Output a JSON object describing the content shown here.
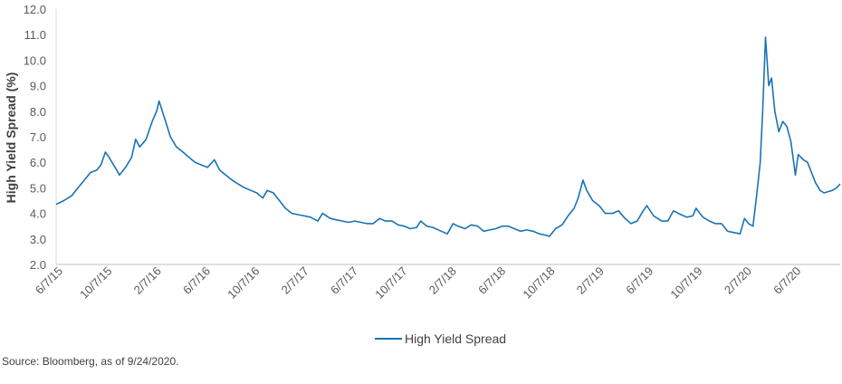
{
  "chart_data": {
    "type": "line",
    "ylabel": "High Yield Spread (%)",
    "xlabel": "",
    "ylim": [
      2.0,
      12.0
    ],
    "yticks": [
      "2.0",
      "3.0",
      "4.0",
      "5.0",
      "6.0",
      "7.0",
      "8.0",
      "9.0",
      "10.0",
      "11.0",
      "12.0"
    ],
    "xticks": [
      "6/7/15",
      "10/7/15",
      "2/7/16",
      "6/7/16",
      "10/7/16",
      "2/7/17",
      "6/7/17",
      "10/7/17",
      "2/7/18",
      "6/7/18",
      "10/7/18",
      "2/7/19",
      "6/7/19",
      "10/7/19",
      "2/7/20",
      "6/7/20"
    ],
    "x_range": [
      "2015-06-01",
      "2020-09-24"
    ],
    "grid": false,
    "legend_position": "bottom",
    "series": [
      {
        "name": "High Yield Spread",
        "color": "#1f77b4",
        "points": [
          [
            "2015-06-01",
            4.35
          ],
          [
            "2015-06-20",
            4.5
          ],
          [
            "2015-07-10",
            4.7
          ],
          [
            "2015-07-25",
            5.0
          ],
          [
            "2015-08-10",
            5.3
          ],
          [
            "2015-08-25",
            5.6
          ],
          [
            "2015-09-10",
            5.7
          ],
          [
            "2015-09-20",
            5.9
          ],
          [
            "2015-10-01",
            6.4
          ],
          [
            "2015-10-10",
            6.2
          ],
          [
            "2015-10-25",
            5.8
          ],
          [
            "2015-11-05",
            5.5
          ],
          [
            "2015-11-20",
            5.8
          ],
          [
            "2015-12-05",
            6.2
          ],
          [
            "2015-12-15",
            6.9
          ],
          [
            "2015-12-25",
            6.6
          ],
          [
            "2016-01-10",
            6.9
          ],
          [
            "2016-01-25",
            7.6
          ],
          [
            "2016-02-05",
            8.0
          ],
          [
            "2016-02-11",
            8.4
          ],
          [
            "2016-02-25",
            7.7
          ],
          [
            "2016-03-10",
            7.0
          ],
          [
            "2016-03-25",
            6.6
          ],
          [
            "2016-04-10",
            6.4
          ],
          [
            "2016-04-25",
            6.2
          ],
          [
            "2016-05-10",
            6.0
          ],
          [
            "2016-05-25",
            5.9
          ],
          [
            "2016-06-10",
            5.8
          ],
          [
            "2016-06-27",
            6.1
          ],
          [
            "2016-07-10",
            5.7
          ],
          [
            "2016-07-25",
            5.5
          ],
          [
            "2016-08-10",
            5.3
          ],
          [
            "2016-08-25",
            5.15
          ],
          [
            "2016-09-10",
            5.0
          ],
          [
            "2016-09-25",
            4.9
          ],
          [
            "2016-10-10",
            4.8
          ],
          [
            "2016-10-25",
            4.6
          ],
          [
            "2016-11-05",
            4.9
          ],
          [
            "2016-11-20",
            4.8
          ],
          [
            "2016-12-05",
            4.5
          ],
          [
            "2016-12-20",
            4.2
          ],
          [
            "2017-01-05",
            4.0
          ],
          [
            "2017-01-20",
            3.95
          ],
          [
            "2017-02-05",
            3.9
          ],
          [
            "2017-02-20",
            3.85
          ],
          [
            "2017-03-10",
            3.7
          ],
          [
            "2017-03-22",
            4.0
          ],
          [
            "2017-04-10",
            3.8
          ],
          [
            "2017-04-25",
            3.75
          ],
          [
            "2017-05-10",
            3.7
          ],
          [
            "2017-05-25",
            3.65
          ],
          [
            "2017-06-10",
            3.7
          ],
          [
            "2017-06-25",
            3.65
          ],
          [
            "2017-07-10",
            3.6
          ],
          [
            "2017-07-25",
            3.6
          ],
          [
            "2017-08-10",
            3.8
          ],
          [
            "2017-08-25",
            3.7
          ],
          [
            "2017-09-10",
            3.7
          ],
          [
            "2017-09-25",
            3.55
          ],
          [
            "2017-10-10",
            3.5
          ],
          [
            "2017-10-25",
            3.4
          ],
          [
            "2017-11-10",
            3.45
          ],
          [
            "2017-11-20",
            3.7
          ],
          [
            "2017-12-05",
            3.5
          ],
          [
            "2017-12-20",
            3.45
          ],
          [
            "2018-01-10",
            3.3
          ],
          [
            "2018-01-25",
            3.2
          ],
          [
            "2018-02-08",
            3.6
          ],
          [
            "2018-02-20",
            3.5
          ],
          [
            "2018-03-10",
            3.4
          ],
          [
            "2018-03-25",
            3.55
          ],
          [
            "2018-04-10",
            3.5
          ],
          [
            "2018-04-25",
            3.3
          ],
          [
            "2018-05-10",
            3.35
          ],
          [
            "2018-05-25",
            3.4
          ],
          [
            "2018-06-10",
            3.5
          ],
          [
            "2018-06-25",
            3.5
          ],
          [
            "2018-07-10",
            3.4
          ],
          [
            "2018-07-25",
            3.3
          ],
          [
            "2018-08-10",
            3.35
          ],
          [
            "2018-08-25",
            3.3
          ],
          [
            "2018-09-10",
            3.2
          ],
          [
            "2018-09-25",
            3.15
          ],
          [
            "2018-10-05",
            3.1
          ],
          [
            "2018-10-20",
            3.4
          ],
          [
            "2018-11-05",
            3.55
          ],
          [
            "2018-11-20",
            3.9
          ],
          [
            "2018-12-05",
            4.2
          ],
          [
            "2018-12-15",
            4.6
          ],
          [
            "2018-12-27",
            5.3
          ],
          [
            "2019-01-05",
            4.9
          ],
          [
            "2019-01-20",
            4.5
          ],
          [
            "2019-02-05",
            4.3
          ],
          [
            "2019-02-20",
            4.0
          ],
          [
            "2019-03-10",
            4.0
          ],
          [
            "2019-03-25",
            4.1
          ],
          [
            "2019-04-10",
            3.8
          ],
          [
            "2019-04-25",
            3.6
          ],
          [
            "2019-05-10",
            3.7
          ],
          [
            "2019-05-25",
            4.1
          ],
          [
            "2019-06-03",
            4.3
          ],
          [
            "2019-06-20",
            3.9
          ],
          [
            "2019-07-10",
            3.7
          ],
          [
            "2019-07-25",
            3.7
          ],
          [
            "2019-08-08",
            4.1
          ],
          [
            "2019-08-20",
            4.0
          ],
          [
            "2019-09-10",
            3.85
          ],
          [
            "2019-09-25",
            3.9
          ],
          [
            "2019-10-03",
            4.2
          ],
          [
            "2019-10-20",
            3.85
          ],
          [
            "2019-11-05",
            3.7
          ],
          [
            "2019-11-20",
            3.6
          ],
          [
            "2019-12-05",
            3.6
          ],
          [
            "2019-12-20",
            3.3
          ],
          [
            "2020-01-05",
            3.25
          ],
          [
            "2020-01-20",
            3.2
          ],
          [
            "2020-01-31",
            3.8
          ],
          [
            "2020-02-10",
            3.6
          ],
          [
            "2020-02-21",
            3.5
          ],
          [
            "2020-03-01",
            4.7
          ],
          [
            "2020-03-10",
            6.0
          ],
          [
            "2020-03-16",
            8.0
          ],
          [
            "2020-03-23",
            10.9
          ],
          [
            "2020-03-31",
            9.0
          ],
          [
            "2020-04-07",
            9.3
          ],
          [
            "2020-04-15",
            8.0
          ],
          [
            "2020-04-25",
            7.2
          ],
          [
            "2020-05-05",
            7.6
          ],
          [
            "2020-05-15",
            7.4
          ],
          [
            "2020-05-25",
            6.8
          ],
          [
            "2020-06-05",
            5.5
          ],
          [
            "2020-06-12",
            6.3
          ],
          [
            "2020-06-25",
            6.1
          ],
          [
            "2020-07-05",
            6.0
          ],
          [
            "2020-07-15",
            5.6
          ],
          [
            "2020-07-25",
            5.2
          ],
          [
            "2020-08-05",
            4.9
          ],
          [
            "2020-08-15",
            4.8
          ],
          [
            "2020-08-25",
            4.85
          ],
          [
            "2020-09-05",
            4.9
          ],
          [
            "2020-09-15",
            5.0
          ],
          [
            "2020-09-24",
            5.15
          ]
        ]
      }
    ]
  },
  "source_note": "Source: Bloomberg, as of 9/24/2020."
}
